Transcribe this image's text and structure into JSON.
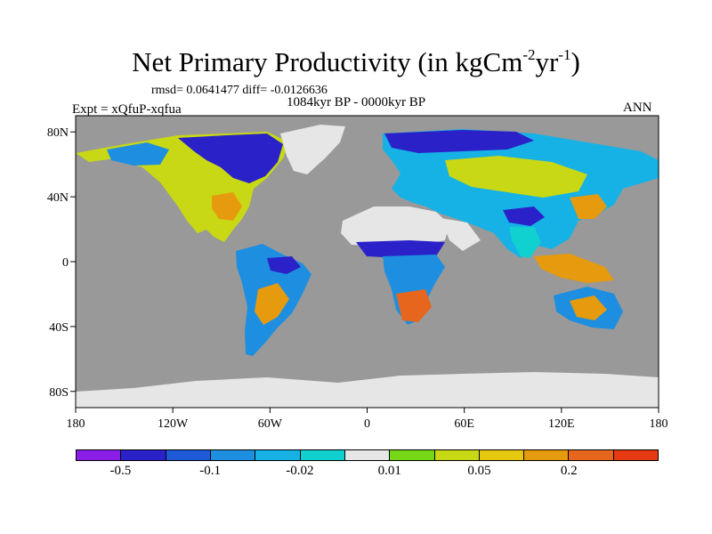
{
  "title": {
    "main": "Net Primary Productivity (in kgCm",
    "sup1": "-2",
    "mid": "yr",
    "sup2": "-1",
    "end": ")"
  },
  "stats": "rmsd= 0.0641477 diff= -0.0126636",
  "period": "1084kyr BP - 0000kyr BP",
  "experiment": "Expt = xQfuP-xqfua",
  "season": "ANN",
  "map": {
    "projection": "cylindrical-equidistant",
    "lon_range": [
      -180,
      180
    ],
    "lat_range": [
      -90,
      90
    ],
    "ocean_color": "#999999",
    "lat_ticks": [
      {
        "v": 80,
        "label": "80N"
      },
      {
        "v": 40,
        "label": "40N"
      },
      {
        "v": 0,
        "label": "0"
      },
      {
        "v": -40,
        "label": "40S"
      },
      {
        "v": -80,
        "label": "80S"
      }
    ],
    "lon_ticks": [
      {
        "v": -180,
        "label": "180"
      },
      {
        "v": -120,
        "label": "120W"
      },
      {
        "v": -60,
        "label": "60W"
      },
      {
        "v": 0,
        "label": "0"
      },
      {
        "v": 60,
        "label": "60E"
      },
      {
        "v": 120,
        "label": "120E"
      },
      {
        "v": 180,
        "label": "180"
      }
    ]
  },
  "colorbar": {
    "colors": [
      "#8a1ee8",
      "#2a22c8",
      "#1e5ad8",
      "#1e8fe0",
      "#16b2e6",
      "#10d0d0",
      "#e6e6e6",
      "#74d814",
      "#c8d814",
      "#e6c80e",
      "#e69a0e",
      "#e6661e",
      "#e63a12"
    ],
    "labels": [
      {
        "text": "-0.5",
        "boundary": 1
      },
      {
        "text": "-0.1",
        "boundary": 3
      },
      {
        "text": "-0.02",
        "boundary": 5
      },
      {
        "text": "0.01",
        "boundary": 7
      },
      {
        "text": "0.05",
        "boundary": 9
      },
      {
        "text": "0.2",
        "boundary": 11
      }
    ]
  }
}
